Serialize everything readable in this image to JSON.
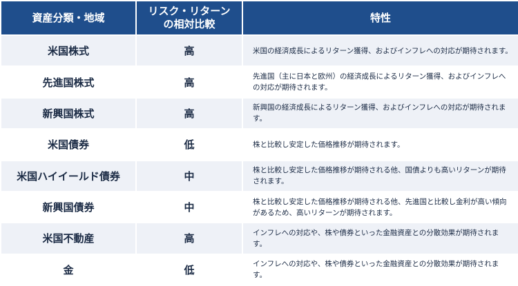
{
  "table": {
    "headers": [
      "資産分類・地域",
      "リスク・リターンの相対比較",
      "特性"
    ],
    "rows": [
      {
        "category": "米国株式",
        "level": "高",
        "feature": "米国の経済成長によるリターン獲得、およびインフレへの対応が期待されます。"
      },
      {
        "category": "先進国株式",
        "level": "高",
        "feature": "先進国（主に日本と欧州）の経済成長によるリターン獲得、およびインフレへの対応が期待されます。"
      },
      {
        "category": "新興国株式",
        "level": "高",
        "feature": "新興国の経済成長によるリターン獲得、およびインフレへの対応が期待されます。"
      },
      {
        "category": "米国債券",
        "level": "低",
        "feature": "株と比較し安定した価格推移が期待されます。"
      },
      {
        "category": "米国ハイイールド債券",
        "level": "中",
        "feature": "株と比較し安定した価格推移が期待される他、国債よりも高いリターンが期待されます。"
      },
      {
        "category": "新興国債券",
        "level": "中",
        "feature": "株と比較し安定した価格推移が期待される他、先進国と比較し金利が高い傾向があるため、高いリターンが期待されます。"
      },
      {
        "category": "米国不動産",
        "level": "高",
        "feature": "インフレへの対応や、株や債券といった金融資産との分散効果が期待されます。"
      },
      {
        "category": "金",
        "level": "低",
        "feature": "インフレへの対応や、株や債券といった金融資産との分散効果が期待されます。"
      }
    ]
  },
  "colors": {
    "header_bg": "#1f4e8c",
    "header_text": "#ffffff",
    "row_shade": "#eef1f7",
    "body_text": "#1a2a44"
  }
}
